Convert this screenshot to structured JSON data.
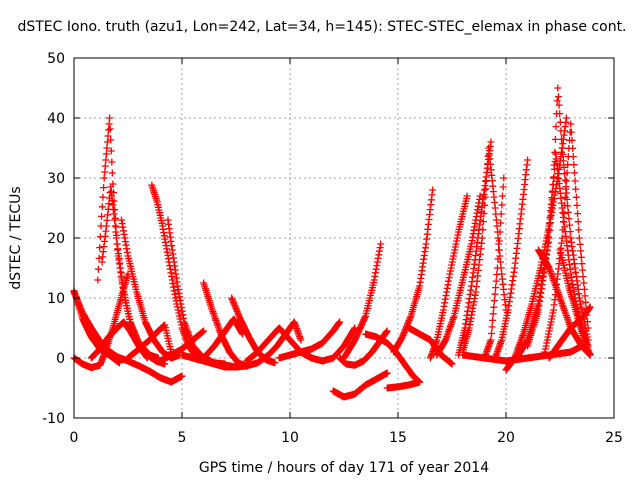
{
  "chart_data": {
    "type": "scatter",
    "title": "dSTEC Iono. truth (azu1, Lon=242, Lat=34, h=145): STEC-STEC_elemax in phase cont.",
    "xlabel": "GPS time / hours of day 171 of year 2014",
    "ylabel": "dSTEC  / TECUs",
    "xlim": [
      0,
      25
    ],
    "ylim": [
      -10,
      50
    ],
    "xticks": [
      0,
      5,
      10,
      15,
      20,
      25
    ],
    "yticks": [
      -10,
      0,
      10,
      20,
      30,
      40,
      50
    ],
    "xtick_labels": [
      "0",
      "5",
      "10",
      "15",
      "20",
      "25"
    ],
    "ytick_labels": [
      "-10",
      "0",
      "10",
      "20",
      "30",
      "40",
      "50"
    ],
    "grid": true,
    "marker": "plus",
    "color": "#ff0000",
    "series": [
      {
        "x": [
          0.0,
          0.4,
          0.8,
          1.2,
          1.7,
          2.1
        ],
        "y": [
          11.2,
          6.5,
          3.5,
          1.5,
          0.3,
          -0.8
        ]
      },
      {
        "x": [
          0.0,
          0.4,
          0.8,
          1.2,
          1.6,
          2.0,
          2.5,
          3.0,
          3.5,
          4.0,
          4.5,
          5.0
        ],
        "y": [
          11.0,
          7.5,
          5.0,
          2.8,
          1.2,
          0.2,
          -0.5,
          -1.3,
          -2.2,
          -3.3,
          -4.0,
          -3.0
        ]
      },
      {
        "x": [
          0.0,
          0.4,
          0.8,
          1.2,
          1.5,
          1.8,
          2.1,
          2.5
        ],
        "y": [
          0.0,
          -1.0,
          -1.6,
          -1.2,
          1.5,
          5.0,
          9.0,
          14.0
        ]
      },
      {
        "x": [
          1.1,
          1.25,
          1.4,
          1.55,
          1.65,
          1.8,
          2.0,
          2.3,
          2.6,
          3.0,
          3.5,
          3.9
        ],
        "y": [
          13.0,
          22.0,
          30.0,
          36.0,
          40.0,
          29.0,
          19.0,
          11.0,
          6.0,
          2.5,
          0.5,
          0.0
        ]
      },
      {
        "x": [
          1.3,
          1.5,
          1.7,
          1.85,
          2.05,
          2.3,
          2.6,
          3.0,
          3.4,
          3.8,
          4.2
        ],
        "y": [
          16.0,
          22.0,
          28.5,
          24.0,
          17.0,
          11.0,
          6.0,
          2.5,
          0.5,
          -0.5,
          -1.0
        ]
      },
      {
        "x": [
          0.8,
          1.2,
          1.6,
          2.0,
          2.3,
          2.6,
          3.0,
          3.4
        ],
        "y": [
          0.0,
          1.5,
          3.5,
          5.0,
          6.0,
          4.5,
          2.0,
          0.0
        ]
      },
      {
        "x": [
          2.2,
          2.5,
          2.9,
          3.3,
          3.7,
          4.1,
          4.5,
          4.9
        ],
        "y": [
          23.0,
          17.0,
          11.0,
          6.0,
          3.0,
          1.0,
          0.0,
          0.5
        ]
      },
      {
        "x": [
          3.6,
          3.85,
          4.1,
          4.4,
          4.7,
          5.0,
          5.3,
          5.6,
          6.0
        ],
        "y": [
          28.8,
          26.0,
          22.0,
          16.0,
          10.0,
          5.0,
          2.0,
          0.5,
          0.0
        ]
      },
      {
        "x": [
          4.35,
          4.55,
          4.8,
          5.1,
          5.5,
          6.0,
          6.5,
          7.0
        ],
        "y": [
          23.0,
          18.0,
          12.0,
          6.0,
          2.0,
          0.0,
          -0.8,
          -1.0
        ]
      },
      {
        "x": [
          2.5,
          3.0,
          3.5,
          3.9,
          4.2,
          4.5
        ],
        "y": [
          0.0,
          1.5,
          3.0,
          4.5,
          5.5,
          1.0
        ]
      },
      {
        "x": [
          4.0,
          4.5,
          5.0,
          5.5,
          6.0
        ],
        "y": [
          -0.5,
          0.5,
          1.5,
          3.0,
          4.5
        ]
      },
      {
        "x": [
          6.0,
          6.4,
          6.8,
          7.2,
          7.6,
          8.0
        ],
        "y": [
          12.5,
          8.0,
          4.0,
          1.0,
          -0.8,
          -1.4
        ]
      },
      {
        "x": [
          7.3,
          7.7,
          8.1,
          8.5,
          8.9,
          9.3
        ],
        "y": [
          10.0,
          6.5,
          3.5,
          1.0,
          -0.3,
          -0.8
        ]
      },
      {
        "x": [
          6.0,
          6.5,
          7.0,
          7.4,
          7.8
        ],
        "y": [
          0.0,
          2.0,
          4.5,
          6.5,
          4.0
        ]
      },
      {
        "x": [
          5.0,
          5.5,
          6.0,
          6.5,
          7.0,
          7.5,
          8.0
        ],
        "y": [
          0.5,
          0.0,
          -0.5,
          -1.0,
          -1.5,
          -1.5,
          -1.2
        ]
      },
      {
        "x": [
          7.0,
          7.5,
          8.0,
          8.5,
          9.0,
          9.4,
          9.8,
          10.2,
          10.5
        ],
        "y": [
          -1.2,
          -1.5,
          -1.3,
          -0.8,
          0.5,
          2.0,
          4.0,
          6.0,
          3.0
        ]
      },
      {
        "x": [
          8.0,
          8.5,
          9.0,
          9.5,
          10.0,
          10.5,
          11.0
        ],
        "y": [
          -0.5,
          1.0,
          3.0,
          5.0,
          3.0,
          1.0,
          0.0
        ]
      },
      {
        "x": [
          9.5,
          10.0,
          10.5,
          11.0,
          11.5,
          12.0,
          12.3
        ],
        "y": [
          0.0,
          0.5,
          1.0,
          1.5,
          2.5,
          4.5,
          6.0
        ]
      },
      {
        "x": [
          10.5,
          11.0,
          11.5,
          12.0,
          12.5,
          13.0
        ],
        "y": [
          1.0,
          0.0,
          -0.5,
          0.0,
          2.0,
          5.0
        ]
      },
      {
        "x": [
          12.3,
          12.6,
          13.0,
          13.4,
          13.8,
          14.2,
          14.5
        ],
        "y": [
          0.0,
          -1.0,
          -1.2,
          -0.5,
          1.0,
          3.0,
          4.5
        ]
      },
      {
        "x": [
          12.0,
          12.5,
          13.0,
          13.5,
          14.0,
          14.5
        ],
        "y": [
          -5.5,
          -6.5,
          -6.0,
          -4.5,
          -3.5,
          -2.5
        ]
      },
      {
        "x": [
          12.5,
          13.0,
          13.5,
          13.9,
          14.2
        ],
        "y": [
          0.0,
          3.0,
          7.0,
          13.0,
          19.0
        ]
      },
      {
        "x": [
          13.5,
          14.0,
          14.5,
          14.9,
          15.3,
          15.7,
          16.0
        ],
        "y": [
          4.0,
          3.5,
          2.5,
          1.0,
          -1.0,
          -3.0,
          -4.0
        ]
      },
      {
        "x": [
          14.5,
          15.0,
          15.5,
          16.0
        ],
        "y": [
          -5.0,
          -4.8,
          -4.5,
          -4.0
        ]
      },
      {
        "x": [
          14.8,
          15.2,
          15.6,
          16.0,
          16.3,
          16.6
        ],
        "y": [
          1.0,
          3.5,
          7.0,
          12.0,
          19.0,
          28.0
        ]
      },
      {
        "x": [
          15.5,
          16.0,
          16.5,
          17.0,
          17.5
        ],
        "y": [
          5.0,
          4.0,
          3.0,
          0.5,
          -1.0
        ]
      },
      {
        "x": [
          16.5,
          16.8,
          17.1,
          17.4,
          17.8,
          18.2
        ],
        "y": [
          0.0,
          3.0,
          8.0,
          14.0,
          21.0,
          27.0
        ]
      },
      {
        "x": [
          16.8,
          17.2,
          17.6,
          18.0,
          18.4,
          18.8
        ],
        "y": [
          0.5,
          3.0,
          7.0,
          13.0,
          19.0,
          27.0
        ]
      },
      {
        "x": [
          17.8,
          18.1,
          18.4,
          18.7,
          19.0,
          19.3
        ],
        "y": [
          0.5,
          5.0,
          12.0,
          20.0,
          28.0,
          36.0
        ]
      },
      {
        "x": [
          18.0,
          18.3,
          18.6,
          18.9,
          19.2,
          19.5,
          19.8,
          20.0
        ],
        "y": [
          1.0,
          5.0,
          11.0,
          20.0,
          35.0,
          25.0,
          14.0,
          8.0
        ]
      },
      {
        "x": [
          19.0,
          19.3,
          19.6,
          19.9
        ],
        "y": [
          0.0,
          3.0,
          15.0,
          30.0
        ]
      },
      {
        "x": [
          19.5,
          19.8,
          20.1,
          20.4,
          20.7,
          21.0
        ],
        "y": [
          0.0,
          3.0,
          8.0,
          15.0,
          24.0,
          33.0
        ]
      },
      {
        "x": [
          20.0,
          20.4,
          20.8,
          21.2,
          21.6,
          22.0,
          22.4,
          22.8
        ],
        "y": [
          -2.0,
          0.0,
          4.0,
          9.0,
          15.0,
          22.0,
          30.0,
          40.0
        ]
      },
      {
        "x": [
          20.5,
          21.0,
          21.5,
          21.9,
          22.2,
          22.4,
          22.6,
          23.0,
          23.4,
          23.8
        ],
        "y": [
          0.0,
          3.0,
          9.0,
          18.0,
          30.0,
          45.0,
          35.0,
          20.0,
          10.0,
          3.0
        ]
      },
      {
        "x": [
          21.0,
          21.5,
          22.0,
          22.3,
          22.6,
          23.0,
          23.4,
          23.8
        ],
        "y": [
          2.0,
          8.0,
          20.0,
          34.0,
          25.0,
          14.0,
          6.0,
          2.0
        ]
      },
      {
        "x": [
          21.8,
          22.2,
          22.6,
          23.0,
          23.4,
          23.8
        ],
        "y": [
          1.0,
          8.0,
          20.0,
          39.0,
          20.0,
          5.0
        ]
      },
      {
        "x": [
          21.5,
          22.0,
          22.5,
          23.0,
          23.5,
          23.9
        ],
        "y": [
          18.0,
          15.0,
          10.0,
          5.0,
          2.0,
          0.5
        ]
      },
      {
        "x": [
          22.5,
          22.9,
          23.3,
          23.6,
          23.9
        ],
        "y": [
          18.0,
          12.0,
          7.0,
          3.0,
          0.5
        ]
      },
      {
        "x": [
          22.0,
          22.5,
          23.0,
          23.3,
          23.6,
          23.9
        ],
        "y": [
          0.0,
          2.5,
          5.0,
          6.0,
          7.0,
          8.5
        ]
      },
      {
        "x": [
          18.0,
          19.0,
          20.0,
          21.0,
          22.0,
          23.0,
          23.5
        ],
        "y": [
          0.5,
          0.0,
          -0.5,
          0.0,
          0.5,
          1.0,
          2.0
        ]
      }
    ]
  }
}
